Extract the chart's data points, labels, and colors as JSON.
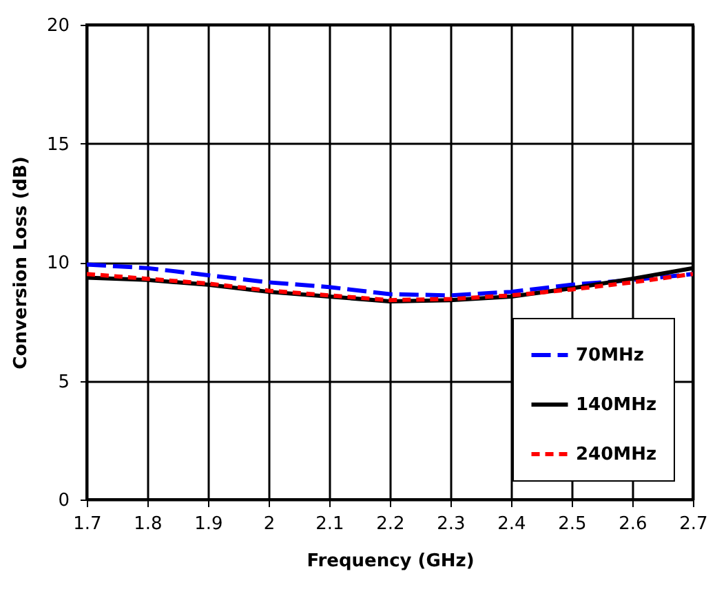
{
  "chart_data": {
    "type": "line",
    "xlabel": "Frequency (GHz)",
    "ylabel": "Conversion Loss (dB)",
    "x": [
      1.7,
      1.8,
      1.9,
      2.0,
      2.1,
      2.2,
      2.3,
      2.4,
      2.5,
      2.6,
      2.7
    ],
    "series": [
      {
        "name": "70MHz",
        "color": "#0000ff",
        "line_style": "dashed",
        "values": [
          9.9,
          9.75,
          9.45,
          9.15,
          8.95,
          8.65,
          8.6,
          8.75,
          9.05,
          9.25,
          9.5
        ]
      },
      {
        "name": "140MHz",
        "color": "#000000",
        "line_style": "solid",
        "values": [
          9.35,
          9.25,
          9.05,
          8.75,
          8.55,
          8.35,
          8.4,
          8.55,
          8.9,
          9.3,
          9.75
        ]
      },
      {
        "name": "240MHz",
        "color": "#ff0000",
        "line_style": "dotted",
        "values": [
          9.5,
          9.3,
          9.1,
          8.8,
          8.6,
          8.4,
          8.45,
          8.6,
          8.85,
          9.15,
          9.5
        ]
      }
    ],
    "xlim": [
      1.7,
      2.7
    ],
    "xticks": [
      1.7,
      1.8,
      1.9,
      2,
      2.1,
      2.2,
      2.3,
      2.4,
      2.5,
      2.6,
      2.7
    ],
    "ylim": [
      0,
      20
    ],
    "yticks": [
      0,
      5,
      10,
      15,
      20
    ],
    "grid": true,
    "legend": "bottom right",
    "marker": "none"
  }
}
